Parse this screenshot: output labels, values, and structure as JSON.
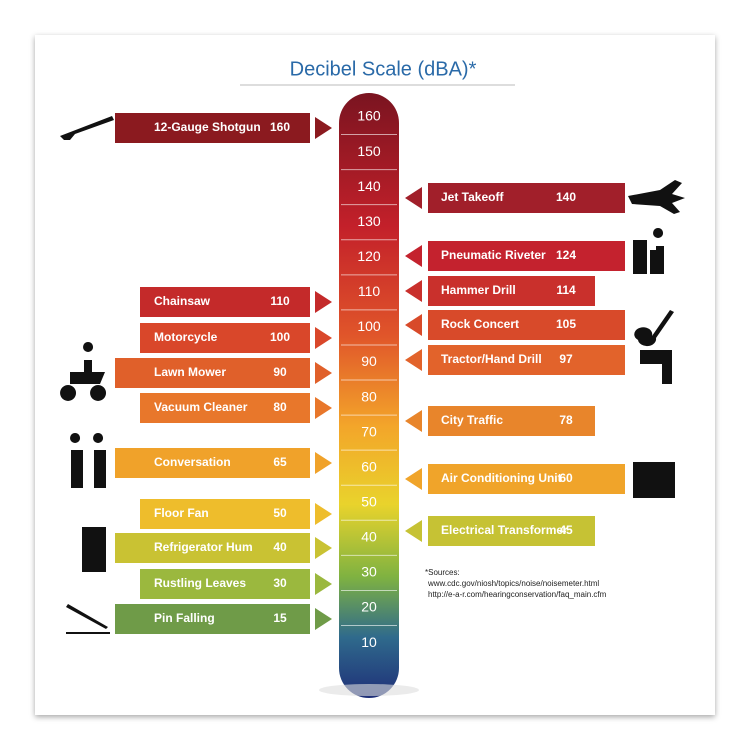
{
  "title": "Decibel Scale (dBA)*",
  "scale": {
    "ticks": [
      160,
      150,
      140,
      130,
      120,
      110,
      100,
      90,
      80,
      70,
      60,
      50,
      40,
      30,
      20,
      10
    ]
  },
  "left_items": [
    {
      "label": "12-Gauge Shotgun",
      "level": 160,
      "color": "#8b1a1f"
    },
    {
      "label": "Chainsaw",
      "level": 110,
      "color": "#c42a2a"
    },
    {
      "label": "Motorcycle",
      "level": 100,
      "color": "#d9472a"
    },
    {
      "label": "Lawn Mower",
      "level": 90,
      "color": "#e0602a"
    },
    {
      "label": "Vacuum Cleaner",
      "level": 80,
      "color": "#e8772b"
    },
    {
      "label": "Conversation",
      "level": 65,
      "color": "#f0a22a"
    },
    {
      "label": "Floor Fan",
      "level": 50,
      "color": "#eebd2c"
    },
    {
      "label": "Refrigerator Hum",
      "level": 40,
      "color": "#c9c233"
    },
    {
      "label": "Rustling Leaves",
      "level": 30,
      "color": "#9bb83e"
    },
    {
      "label": "Pin Falling",
      "level": 15,
      "color": "#6f9b48"
    }
  ],
  "right_items": [
    {
      "label": "Jet Takeoff",
      "level": 140,
      "color": "#a11f2a"
    },
    {
      "label": "Pneumatic Riveter",
      "level": 124,
      "color": "#c4222e"
    },
    {
      "label": "Hammer Drill",
      "level": 114,
      "color": "#c9302c"
    },
    {
      "label": "Rock Concert",
      "level": 105,
      "color": "#d84a2a"
    },
    {
      "label": "Tractor/Hand Drill",
      "level": 97,
      "color": "#e2632b"
    },
    {
      "label": "City Traffic",
      "level": 78,
      "color": "#e8852b"
    },
    {
      "label": "Air Conditioning Unit",
      "level": 60,
      "color": "#f0a42a"
    },
    {
      "label": "Electrical Transformer",
      "level": 45,
      "color": "#c6c234"
    }
  ],
  "sources": {
    "heading": "*Sources:",
    "lines": [
      "www.cdc.gov/niosh/topics/noise/noisemeter.html",
      "http://e-a-r.com/hearingconservation/faq_main.cfm"
    ]
  }
}
